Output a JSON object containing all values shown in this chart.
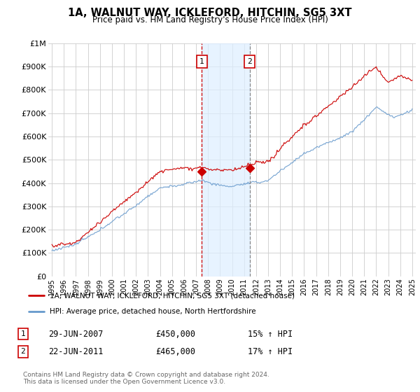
{
  "title": "1A, WALNUT WAY, ICKLEFORD, HITCHIN, SG5 3XT",
  "subtitle": "Price paid vs. HM Land Registry's House Price Index (HPI)",
  "ylabel_ticks": [
    "£0",
    "£100K",
    "£200K",
    "£300K",
    "£400K",
    "£500K",
    "£600K",
    "£700K",
    "£800K",
    "£900K",
    "£1M"
  ],
  "ytick_vals": [
    0,
    100000,
    200000,
    300000,
    400000,
    500000,
    600000,
    700000,
    800000,
    900000,
    1000000
  ],
  "ylim": [
    0,
    1000000
  ],
  "xlim_start": 1994.7,
  "xlim_end": 2025.3,
  "red_color": "#cc0000",
  "blue_color": "#6699cc",
  "sale1_x": 2007.49,
  "sale1_y": 450000,
  "sale1_label": "1",
  "sale1_date": "29-JUN-2007",
  "sale1_price": "£450,000",
  "sale1_hpi": "15% ↑ HPI",
  "sale2_x": 2011.47,
  "sale2_y": 465000,
  "sale2_label": "2",
  "sale2_date": "22-JUN-2011",
  "sale2_price": "£465,000",
  "sale2_hpi": "17% ↑ HPI",
  "legend_line1": "1A, WALNUT WAY, ICKLEFORD, HITCHIN, SG5 3XT (detached house)",
  "legend_line2": "HPI: Average price, detached house, North Hertfordshire",
  "footnote": "Contains HM Land Registry data © Crown copyright and database right 2024.\nThis data is licensed under the Open Government Licence v3.0.",
  "background_color": "#ffffff",
  "plot_bg_color": "#ffffff",
  "grid_color": "#cccccc"
}
